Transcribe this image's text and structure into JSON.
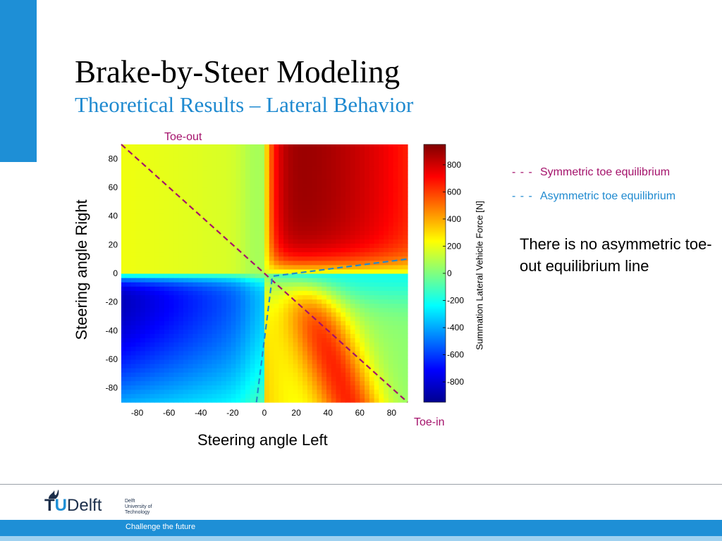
{
  "slide": {
    "title": "Brake-by-Steer Modeling",
    "subtitle": "Theoretical Results – Lateral Behavior",
    "note": "There is no asymmetric toe-out equilibrium line"
  },
  "annotations": {
    "toe_out": "Toe-out",
    "toe_in": "Toe-in"
  },
  "legend": [
    {
      "symbol": "- - -",
      "label": "Symmetric toe equilibrium",
      "color": "#a4126b"
    },
    {
      "symbol": "- - -",
      "label": "Asymmetric toe equilibrium",
      "color": "#1f8ad0"
    }
  ],
  "footer": {
    "logo_tu": "TU",
    "logo_t": "T",
    "logo_u": "U",
    "logo_delft": "Delft",
    "logo_small": [
      "Delft",
      "University of",
      "Technology"
    ],
    "tagline": "Challenge the future"
  },
  "chart_data": {
    "type": "heatmap",
    "title": "",
    "xlabel": "Steering angle Left",
    "ylabel": "Steering angle Right",
    "colorbar_label": "Summation Lateral Vehicle Force [N]",
    "xlim": [
      -90,
      90
    ],
    "ylim": [
      -90,
      90
    ],
    "xticks": [
      -80,
      -60,
      -40,
      -20,
      0,
      20,
      40,
      60,
      80
    ],
    "yticks": [
      80,
      60,
      40,
      20,
      0,
      -20,
      -40,
      -60,
      -80
    ],
    "clim": [
      -950,
      950
    ],
    "colorbar_ticks": [
      800,
      600,
      400,
      200,
      0,
      -200,
      -400,
      -600,
      -800
    ],
    "colormap": "jet",
    "regions": [
      {
        "name": "upper-left",
        "approx_value": 150
      },
      {
        "name": "upper-right",
        "approx_value": 900
      },
      {
        "name": "lower-left",
        "approx_value": -850
      },
      {
        "name": "lower-right",
        "approx_value": 500
      },
      {
        "name": "right-middle",
        "approx_value": -150
      }
    ],
    "series": [
      {
        "name": "Symmetric toe equilibrium",
        "color": "#a4126b",
        "style": "dashed",
        "x": [
          -90,
          90
        ],
        "y": [
          90,
          -90
        ]
      },
      {
        "name": "Asymmetric toe equilibrium",
        "color": "#1f8ad0",
        "style": "dashed",
        "x": [
          -5,
          5,
          90
        ],
        "y": [
          -90,
          -2,
          10
        ]
      }
    ]
  }
}
